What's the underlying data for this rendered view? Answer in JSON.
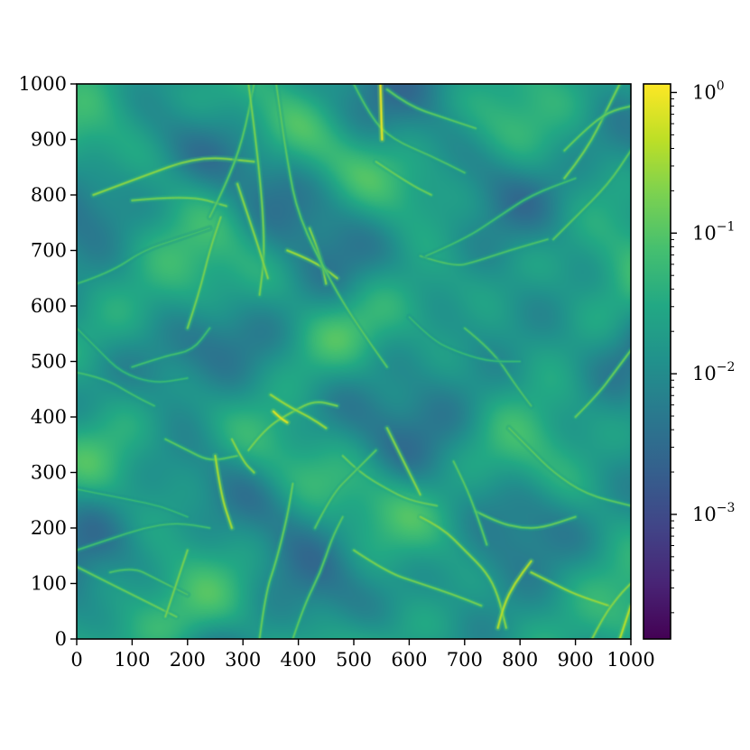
{
  "chart_data": {
    "type": "heatmap",
    "title": "",
    "xlabel": "",
    "ylabel": "",
    "xlim": [
      0,
      1000
    ],
    "ylim": [
      0,
      1000
    ],
    "x_ticks": [
      "0",
      "100",
      "200",
      "300",
      "400",
      "500",
      "600",
      "700",
      "800",
      "900",
      "1000"
    ],
    "y_ticks": [
      "0",
      "100",
      "200",
      "300",
      "400",
      "500",
      "600",
      "700",
      "800",
      "900",
      "1000"
    ],
    "colormap": "viridis",
    "colorbar": {
      "scale": "log",
      "range": [
        0.00013,
        1.15
      ],
      "ticks": [
        {
          "value": 0.001,
          "base": "10",
          "exp": "−3"
        },
        {
          "value": 0.01,
          "base": "10",
          "exp": "−2"
        },
        {
          "value": 0.1,
          "base": "10",
          "exp": "−1"
        },
        {
          "value": 1,
          "base": "10",
          "exp": "0"
        }
      ]
    },
    "background_log10": -1.8,
    "filaments": [
      {
        "points": [
          [
            30,
            800
          ],
          [
            110,
            830
          ],
          [
            220,
            870
          ],
          [
            320,
            860
          ]
        ],
        "peak_log10": -0.6
      },
      {
        "points": [
          [
            100,
            790
          ],
          [
            200,
            800
          ],
          [
            270,
            780
          ]
        ],
        "peak_log10": -0.7
      },
      {
        "points": [
          [
            240,
            760
          ],
          [
            270,
            820
          ],
          [
            300,
            900
          ],
          [
            320,
            1000
          ]
        ],
        "peak_log10": -0.9
      },
      {
        "points": [
          [
            310,
            1000
          ],
          [
            330,
            850
          ],
          [
            340,
            700
          ],
          [
            330,
            620
          ]
        ],
        "peak_log10": -0.7
      },
      {
        "points": [
          [
            290,
            820
          ],
          [
            310,
            760
          ],
          [
            330,
            700
          ],
          [
            345,
            650
          ]
        ],
        "peak_log10": -0.6
      },
      {
        "points": [
          [
            380,
            700
          ],
          [
            430,
            680
          ],
          [
            470,
            650
          ]
        ],
        "peak_log10": -0.5
      },
      {
        "points": [
          [
            420,
            740
          ],
          [
            440,
            690
          ],
          [
            450,
            640
          ]
        ],
        "peak_log10": -0.6
      },
      {
        "points": [
          [
            500,
            1000
          ],
          [
            530,
            940
          ],
          [
            570,
            900
          ],
          [
            640,
            870
          ],
          [
            700,
            840
          ]
        ],
        "peak_log10": -1.0
      },
      {
        "points": [
          [
            540,
            860
          ],
          [
            600,
            820
          ],
          [
            640,
            800
          ]
        ],
        "peak_log10": -0.8
      },
      {
        "points": [
          [
            548,
            1000
          ],
          [
            549,
            960
          ],
          [
            551,
            900
          ]
        ],
        "peak_log10": 0.0
      },
      {
        "points": [
          [
            560,
            990
          ],
          [
            600,
            960
          ],
          [
            660,
            940
          ],
          [
            720,
            920
          ]
        ],
        "peak_log10": -0.9
      },
      {
        "points": [
          [
            620,
            690
          ],
          [
            680,
            670
          ],
          [
            720,
            680
          ],
          [
            780,
            700
          ],
          [
            850,
            720
          ]
        ],
        "peak_log10": -1.0
      },
      {
        "points": [
          [
            630,
            690
          ],
          [
            700,
            720
          ],
          [
            760,
            760
          ],
          [
            820,
            800
          ],
          [
            900,
            830
          ]
        ],
        "peak_log10": -1.1
      },
      {
        "points": [
          [
            560,
            490
          ],
          [
            510,
            560
          ],
          [
            460,
            640
          ],
          [
            400,
            760
          ],
          [
            380,
            860
          ],
          [
            360,
            1000
          ]
        ],
        "peak_log10": -0.9
      },
      {
        "points": [
          [
            100,
            490
          ],
          [
            160,
            510
          ],
          [
            210,
            520
          ],
          [
            240,
            560
          ]
        ],
        "peak_log10": -1.1
      },
      {
        "points": [
          [
            0,
            480
          ],
          [
            50,
            470
          ],
          [
            100,
            440
          ],
          [
            140,
            420
          ]
        ],
        "peak_log10": -1.1
      },
      {
        "points": [
          [
            0,
            560
          ],
          [
            40,
            520
          ],
          [
            80,
            480
          ],
          [
            140,
            460
          ],
          [
            200,
            470
          ]
        ],
        "peak_log10": -1.2
      },
      {
        "points": [
          [
            160,
            360
          ],
          [
            200,
            340
          ],
          [
            240,
            320
          ],
          [
            290,
            330
          ]
        ],
        "peak_log10": -0.9
      },
      {
        "points": [
          [
            250,
            330
          ],
          [
            260,
            260
          ],
          [
            280,
            200
          ]
        ],
        "peak_log10": -0.4
      },
      {
        "points": [
          [
            280,
            360
          ],
          [
            300,
            320
          ],
          [
            320,
            300
          ]
        ],
        "peak_log10": -0.6
      },
      {
        "points": [
          [
            310,
            340
          ],
          [
            340,
            380
          ],
          [
            390,
            410
          ],
          [
            430,
            430
          ],
          [
            470,
            420
          ]
        ],
        "peak_log10": -0.7
      },
      {
        "points": [
          [
            350,
            440
          ],
          [
            380,
            420
          ],
          [
            420,
            400
          ],
          [
            450,
            380
          ]
        ],
        "peak_log10": -0.5
      },
      {
        "points": [
          [
            355,
            410
          ],
          [
            365,
            400
          ],
          [
            380,
            390
          ]
        ],
        "peak_log10": -0.05
      },
      {
        "points": [
          [
            480,
            330
          ],
          [
            510,
            300
          ],
          [
            560,
            270
          ],
          [
            600,
            250
          ],
          [
            650,
            240
          ]
        ],
        "peak_log10": -0.8
      },
      {
        "points": [
          [
            560,
            380
          ],
          [
            580,
            340
          ],
          [
            600,
            300
          ],
          [
            620,
            260
          ]
        ],
        "peak_log10": -0.6
      },
      {
        "points": [
          [
            430,
            200
          ],
          [
            460,
            260
          ],
          [
            500,
            300
          ],
          [
            540,
            340
          ]
        ],
        "peak_log10": -0.9
      },
      {
        "points": [
          [
            200,
            560
          ],
          [
            220,
            620
          ],
          [
            240,
            700
          ],
          [
            260,
            760
          ]
        ],
        "peak_log10": -0.7
      },
      {
        "points": [
          [
            0,
            160
          ],
          [
            60,
            180
          ],
          [
            120,
            200
          ],
          [
            180,
            210
          ],
          [
            240,
            200
          ]
        ],
        "peak_log10": -1.1
      },
      {
        "points": [
          [
            0,
            130
          ],
          [
            40,
            110
          ],
          [
            100,
            80
          ],
          [
            140,
            60
          ],
          [
            180,
            40
          ]
        ],
        "peak_log10": -0.8
      },
      {
        "points": [
          [
            60,
            120
          ],
          [
            100,
            130
          ],
          [
            140,
            110
          ],
          [
            200,
            80
          ]
        ],
        "peak_log10": -1.0
      },
      {
        "points": [
          [
            160,
            40
          ],
          [
            180,
            100
          ],
          [
            200,
            160
          ]
        ],
        "peak_log10": -0.7
      },
      {
        "points": [
          [
            330,
            0
          ],
          [
            340,
            80
          ],
          [
            360,
            140
          ],
          [
            380,
            220
          ],
          [
            390,
            280
          ]
        ],
        "peak_log10": -0.8
      },
      {
        "points": [
          [
            390,
            0
          ],
          [
            410,
            60
          ],
          [
            440,
            120
          ],
          [
            460,
            180
          ],
          [
            480,
            220
          ]
        ],
        "peak_log10": -0.9
      },
      {
        "points": [
          [
            500,
            160
          ],
          [
            560,
            120
          ],
          [
            620,
            100
          ],
          [
            680,
            80
          ],
          [
            730,
            60
          ]
        ],
        "peak_log10": -0.7
      },
      {
        "points": [
          [
            620,
            220
          ],
          [
            660,
            200
          ],
          [
            700,
            160
          ],
          [
            740,
            120
          ],
          [
            760,
            80
          ],
          [
            775,
            20
          ]
        ],
        "peak_log10": -0.6
      },
      {
        "points": [
          [
            760,
            20
          ],
          [
            770,
            60
          ],
          [
            790,
            100
          ],
          [
            820,
            140
          ]
        ],
        "peak_log10": -0.3
      },
      {
        "points": [
          [
            720,
            230
          ],
          [
            760,
            210
          ],
          [
            800,
            200
          ],
          [
            840,
            200
          ],
          [
            900,
            220
          ]
        ],
        "peak_log10": -0.8
      },
      {
        "points": [
          [
            820,
            120
          ],
          [
            860,
            100
          ],
          [
            900,
            80
          ],
          [
            960,
            60
          ]
        ],
        "peak_log10": -0.5
      },
      {
        "points": [
          [
            930,
            0
          ],
          [
            950,
            40
          ],
          [
            980,
            80
          ],
          [
            1000,
            100
          ]
        ],
        "peak_log10": -0.6
      },
      {
        "points": [
          [
            700,
            560
          ],
          [
            750,
            520
          ],
          [
            790,
            460
          ],
          [
            820,
            420
          ]
        ],
        "peak_log10": -1.0
      },
      {
        "points": [
          [
            780,
            380
          ],
          [
            820,
            340
          ],
          [
            860,
            300
          ],
          [
            920,
            260
          ],
          [
            1000,
            240
          ]
        ],
        "peak_log10": -0.9
      },
      {
        "points": [
          [
            900,
            400
          ],
          [
            940,
            440
          ],
          [
            970,
            480
          ],
          [
            1000,
            520
          ]
        ],
        "peak_log10": -0.8
      },
      {
        "points": [
          [
            860,
            720
          ],
          [
            900,
            760
          ],
          [
            960,
            820
          ],
          [
            1000,
            880
          ]
        ],
        "peak_log10": -0.9
      },
      {
        "points": [
          [
            880,
            830
          ],
          [
            920,
            880
          ],
          [
            960,
            960
          ],
          [
            980,
            1000
          ]
        ],
        "peak_log10": -0.7
      },
      {
        "points": [
          [
            0,
            640
          ],
          [
            60,
            660
          ],
          [
            120,
            700
          ],
          [
            180,
            720
          ],
          [
            240,
            740
          ]
        ],
        "peak_log10": -1.1
      },
      {
        "points": [
          [
            0,
            270
          ],
          [
            50,
            260
          ],
          [
            100,
            250
          ],
          [
            150,
            240
          ],
          [
            200,
            220
          ]
        ],
        "peak_log10": -1.2
      },
      {
        "points": [
          [
            880,
            880
          ],
          [
            920,
            920
          ],
          [
            960,
            950
          ],
          [
            1000,
            960
          ]
        ],
        "peak_log10": -0.8
      },
      {
        "points": [
          [
            980,
            0
          ],
          [
            990,
            30
          ],
          [
            1000,
            60
          ]
        ],
        "peak_log10": -0.3
      },
      {
        "points": [
          [
            680,
            320
          ],
          [
            700,
            280
          ],
          [
            720,
            230
          ],
          [
            740,
            170
          ]
        ],
        "peak_log10": -0.9
      },
      {
        "points": [
          [
            600,
            580
          ],
          [
            640,
            540
          ],
          [
            680,
            520
          ],
          [
            740,
            500
          ],
          [
            800,
            500
          ]
        ],
        "peak_log10": -1.2
      }
    ]
  }
}
